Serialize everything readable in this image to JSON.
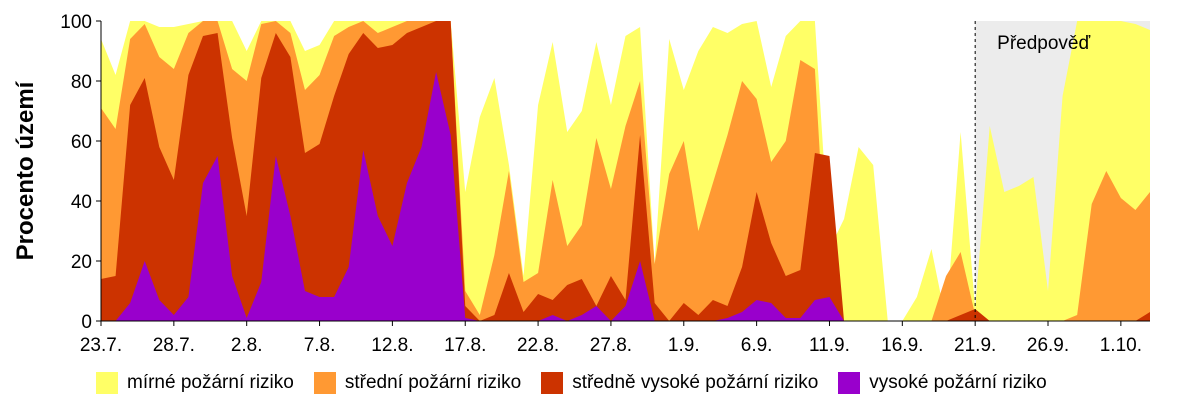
{
  "chart_data": {
    "type": "area",
    "ylabel": "Procento území",
    "ylim": [
      0,
      100
    ],
    "yticks": [
      "0",
      "20",
      "40",
      "60",
      "80",
      "100"
    ],
    "xticks": [
      "23.7.",
      "28.7.",
      "2.8.",
      "7.8.",
      "12.8.",
      "17.8.",
      "22.8.",
      "27.8.",
      "1.9.",
      "6.9.",
      "11.9.",
      "16.9.",
      "21.9.",
      "26.9.",
      "1.10."
    ],
    "forecast": {
      "label": "Předpověď",
      "from_index": 60
    },
    "series": [
      {
        "name": "vysoké požární riziko",
        "color": "#9900cc",
        "values": [
          0,
          0,
          6,
          20,
          7,
          2,
          8,
          46,
          55,
          15,
          1,
          13,
          55,
          35,
          10,
          8,
          8,
          18,
          57,
          35,
          25,
          46,
          58,
          83,
          62,
          1,
          0,
          0,
          0,
          0,
          0,
          2,
          0,
          2,
          5,
          0,
          5,
          20,
          0,
          0,
          0,
          0,
          0,
          1,
          3,
          7,
          6,
          1,
          1,
          7,
          8,
          0,
          0,
          0,
          0,
          0,
          0,
          0,
          0,
          0,
          0,
          0,
          0,
          0,
          0,
          0,
          0,
          0,
          0,
          0,
          0,
          0,
          0
        ]
      },
      {
        "name": "středně vysoké požární riziko",
        "color": "#cc3300",
        "values": [
          14,
          15,
          72,
          81,
          58,
          47,
          82,
          95,
          96,
          61,
          35,
          81,
          96,
          88,
          56,
          59,
          75,
          89,
          96,
          91,
          92,
          96,
          98,
          100,
          100,
          5,
          0,
          2,
          16,
          3,
          9,
          7,
          12,
          14,
          5,
          15,
          7,
          62,
          6,
          0,
          6,
          2,
          7,
          5,
          18,
          43,
          26,
          15,
          17,
          56,
          55,
          0,
          0,
          0,
          0,
          0,
          0,
          0,
          0,
          2,
          4,
          0,
          0,
          0,
          0,
          0,
          0,
          0,
          0,
          0,
          0,
          0,
          3
        ]
      },
      {
        "name": "střední požární riziko",
        "color": "#ff9933",
        "values": [
          71,
          64,
          94,
          99,
          88,
          84,
          96,
          100,
          100,
          84,
          80,
          99,
          100,
          96,
          77,
          82,
          95,
          98,
          100,
          96,
          98,
          100,
          100,
          100,
          100,
          10,
          2,
          22,
          50,
          13,
          16,
          47,
          25,
          32,
          61,
          44,
          65,
          80,
          19,
          49,
          60,
          30,
          46,
          62,
          80,
          74,
          53,
          60,
          87,
          84,
          0,
          0,
          0,
          0,
          0,
          0,
          0,
          0,
          15,
          23,
          2,
          0,
          0,
          0,
          0,
          0,
          0,
          2,
          39,
          50,
          41,
          37,
          43
        ]
      },
      {
        "name": "mírné požární riziko",
        "color": "#ffff66",
        "values": [
          94,
          82,
          100,
          100,
          98,
          98,
          99,
          100,
          100,
          100,
          90,
          100,
          100,
          100,
          90,
          92,
          100,
          100,
          100,
          100,
          100,
          100,
          100,
          100,
          100,
          43,
          68,
          81,
          52,
          15,
          72,
          93,
          63,
          70,
          93,
          72,
          95,
          98,
          19,
          94,
          77,
          90,
          98,
          96,
          99,
          100,
          78,
          95,
          100,
          100,
          24,
          34,
          58,
          52,
          0,
          0,
          8,
          24,
          0,
          63,
          4,
          65,
          43,
          45,
          48,
          10,
          75,
          100,
          100,
          100,
          100,
          99,
          97
        ]
      }
    ]
  },
  "legend": {
    "items": [
      {
        "label": "mírné požární riziko",
        "color": "#ffff66"
      },
      {
        "label": "střední požární riziko",
        "color": "#ff9933"
      },
      {
        "label": "středně vysoké požární riziko",
        "color": "#cc3300"
      },
      {
        "label": "vysoké požární riziko",
        "color": "#9900cc"
      }
    ]
  }
}
